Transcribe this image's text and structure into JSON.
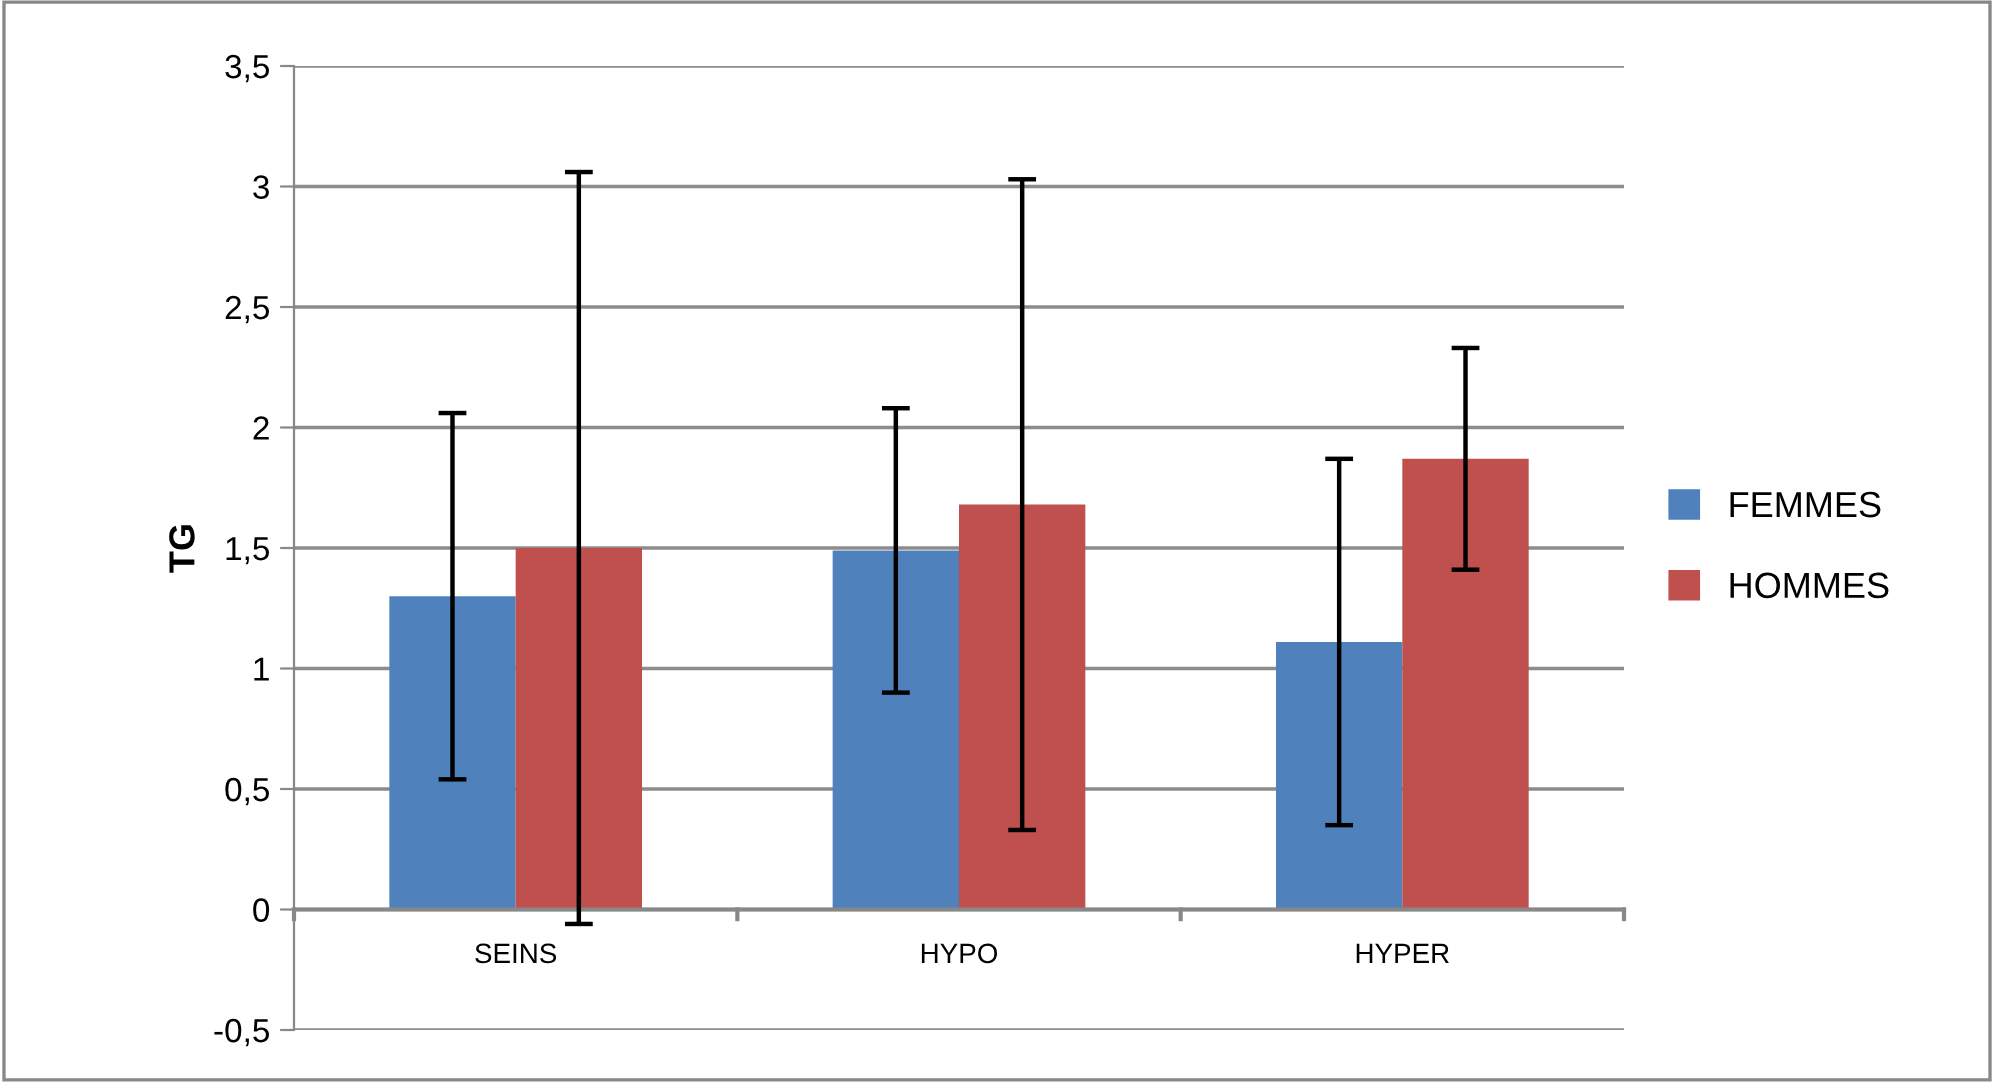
{
  "chart_data": {
    "type": "bar",
    "ylabel": "TG",
    "categories": [
      "SEINS",
      "HYPO",
      "HYPER"
    ],
    "series": [
      {
        "name": "FEMMES",
        "color": "#4f81bd",
        "values": [
          1.3,
          1.49,
          1.11
        ],
        "errors": [
          0.76,
          0.59,
          0.76
        ]
      },
      {
        "name": "HOMMES",
        "color": "#c0504d",
        "values": [
          1.5,
          1.68,
          1.87
        ],
        "errors": [
          1.56,
          1.35,
          0.46
        ]
      }
    ],
    "ylim": [
      -0.5,
      3.5
    ],
    "yticks": [
      {
        "value": -0.5,
        "label": "-0,5"
      },
      0,
      {
        "value": 0.5,
        "label": "0,5"
      },
      1,
      {
        "value": 1.5,
        "label": "1,5"
      },
      2,
      {
        "value": 2.5,
        "label": "2,5"
      },
      3,
      {
        "value": 3.5,
        "label": "3,5"
      }
    ],
    "grid": "y",
    "legend": "right"
  }
}
